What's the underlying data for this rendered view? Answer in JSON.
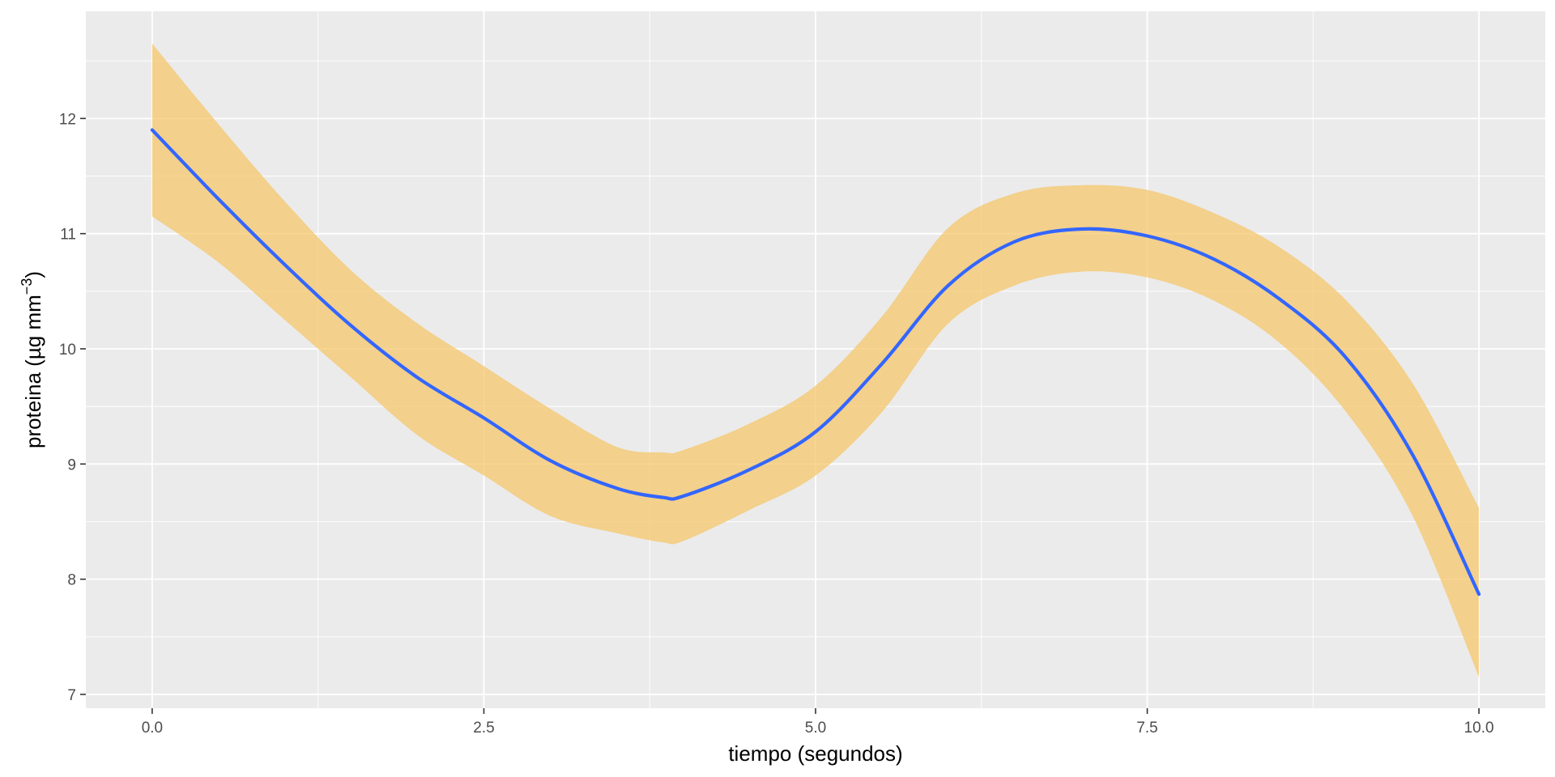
{
  "chart_data": {
    "type": "area",
    "title": "",
    "xlabel": "tiempo (segundos)",
    "ylabel": {
      "text": "proteina (µg mm",
      "superscript": "−3",
      "close": ")"
    },
    "xlim": [
      -0.5,
      10.5
    ],
    "ylim": [
      6.88,
      12.93
    ],
    "x_ticks": [
      0.0,
      2.5,
      5.0,
      7.5,
      10.0
    ],
    "x_tick_labels": [
      "0.0",
      "2.5",
      "5.0",
      "7.5",
      "10.0"
    ],
    "y_ticks": [
      7,
      8,
      9,
      10,
      11,
      12
    ],
    "y_tick_labels": [
      "7",
      "8",
      "9",
      "10",
      "11",
      "12"
    ],
    "grid": true,
    "legend": "none",
    "colors": {
      "panel": "#EBEBEB",
      "grid": "#FFFFFF",
      "line": "#3366FF",
      "band": "#F5C565"
    },
    "series": [
      {
        "x": [
          0.0,
          0.5,
          1.0,
          1.5,
          2.0,
          2.5,
          3.0,
          3.5,
          3.85,
          4.0,
          4.5,
          5.0,
          5.5,
          6.0,
          6.5,
          7.0,
          7.5,
          8.0,
          8.5,
          9.0,
          9.5,
          10.0
        ],
        "y": [
          11.9,
          11.3,
          10.73,
          10.2,
          9.75,
          9.4,
          9.03,
          8.79,
          8.71,
          8.72,
          8.95,
          9.28,
          9.87,
          10.55,
          10.93,
          11.04,
          10.98,
          10.78,
          10.43,
          9.92,
          9.08,
          7.87
        ],
        "lower": [
          11.15,
          10.75,
          10.25,
          9.75,
          9.25,
          8.9,
          8.55,
          8.4,
          8.32,
          8.33,
          8.6,
          8.9,
          9.45,
          10.22,
          10.55,
          10.67,
          10.62,
          10.42,
          10.05,
          9.45,
          8.55,
          7.15
        ],
        "upper": [
          12.65,
          11.95,
          11.28,
          10.68,
          10.22,
          9.85,
          9.48,
          9.15,
          9.1,
          9.12,
          9.35,
          9.68,
          10.28,
          11.05,
          11.35,
          11.42,
          11.38,
          11.18,
          10.88,
          10.42,
          9.7,
          8.62
        ]
      }
    ]
  }
}
